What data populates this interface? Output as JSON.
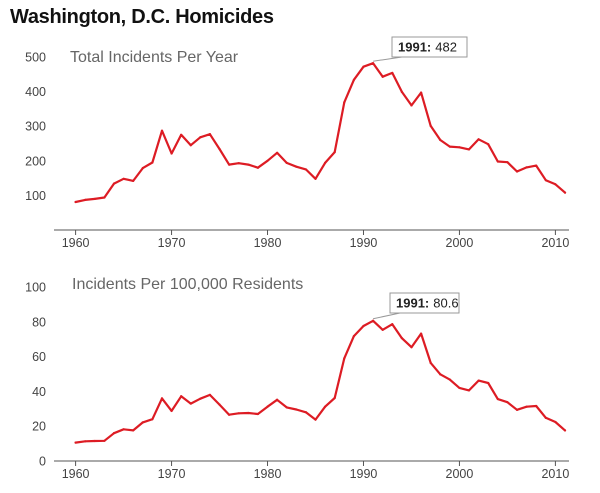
{
  "title": "Washington, D.C. Homicides",
  "colors": {
    "line": "#dd1c24",
    "axis": "#555555",
    "annotation_border": "#999999"
  },
  "chart_data": [
    {
      "type": "line",
      "title": "Total Incidents Per Year",
      "xlim": [
        1959,
        2011
      ],
      "ylim": [
        0,
        500
      ],
      "xticks": [
        1960,
        1970,
        1980,
        1990,
        2000,
        2010
      ],
      "yticks": [
        100,
        200,
        300,
        400,
        500
      ],
      "grid": false,
      "annotation": {
        "year": "1991",
        "sep": ":",
        "value": "482",
        "x": 1991,
        "y": 482
      },
      "x": [
        1960,
        1961,
        1962,
        1963,
        1964,
        1965,
        1966,
        1967,
        1968,
        1969,
        1970,
        1971,
        1972,
        1973,
        1974,
        1975,
        1976,
        1977,
        1978,
        1979,
        1980,
        1981,
        1982,
        1983,
        1984,
        1985,
        1986,
        1987,
        1988,
        1989,
        1990,
        1991,
        1992,
        1993,
        1994,
        1995,
        1996,
        1997,
        1998,
        1999,
        2000,
        2001,
        2002,
        2003,
        2004,
        2005,
        2006,
        2007,
        2008,
        2009,
        2010,
        2011
      ],
      "y": [
        81,
        87,
        90,
        94,
        134,
        148,
        142,
        179,
        195,
        287,
        221,
        275,
        245,
        268,
        277,
        234,
        189,
        193,
        189,
        180,
        200,
        223,
        194,
        183,
        175,
        148,
        194,
        225,
        369,
        434,
        472,
        482,
        443,
        454,
        399,
        360,
        397,
        301,
        260,
        241,
        239,
        233,
        262,
        248,
        198,
        196,
        169,
        181,
        186,
        144,
        132,
        108
      ]
    },
    {
      "type": "line",
      "title": "Incidents Per 100,000 Residents",
      "xlim": [
        1959,
        2011
      ],
      "ylim": [
        0,
        100
      ],
      "xticks": [
        1960,
        1970,
        1980,
        1990,
        2000,
        2010
      ],
      "yticks": [
        0,
        20,
        40,
        60,
        80,
        100
      ],
      "grid": false,
      "annotation": {
        "year": "1991",
        "sep": ":",
        "value": "80.6",
        "x": 1991,
        "y": 80.6
      },
      "x": [
        1960,
        1961,
        1962,
        1963,
        1964,
        1965,
        1966,
        1967,
        1968,
        1969,
        1970,
        1971,
        1972,
        1973,
        1974,
        1975,
        1976,
        1977,
        1978,
        1979,
        1980,
        1981,
        1982,
        1983,
        1984,
        1985,
        1986,
        1987,
        1988,
        1989,
        1990,
        1991,
        1992,
        1993,
        1994,
        1995,
        1996,
        1997,
        1998,
        1999,
        2000,
        2001,
        2002,
        2003,
        2004,
        2005,
        2006,
        2007,
        2008,
        2009,
        2010,
        2011
      ],
      "y": [
        10.6,
        11.3,
        11.5,
        11.6,
        16.0,
        18.2,
        17.6,
        22.2,
        24.0,
        36.0,
        28.8,
        37.2,
        33.0,
        35.8,
        38.0,
        32.4,
        26.6,
        27.4,
        27.6,
        27.0,
        31.2,
        35.2,
        30.8,
        29.6,
        28.0,
        23.8,
        31.2,
        36.2,
        59.0,
        71.8,
        77.6,
        80.6,
        75.4,
        78.6,
        70.6,
        65.4,
        73.2,
        56.4,
        49.8,
        46.8,
        42.0,
        40.6,
        46.2,
        44.8,
        35.6,
        33.8,
        29.4,
        31.2,
        31.6,
        24.8,
        22.4,
        17.6
      ]
    }
  ]
}
